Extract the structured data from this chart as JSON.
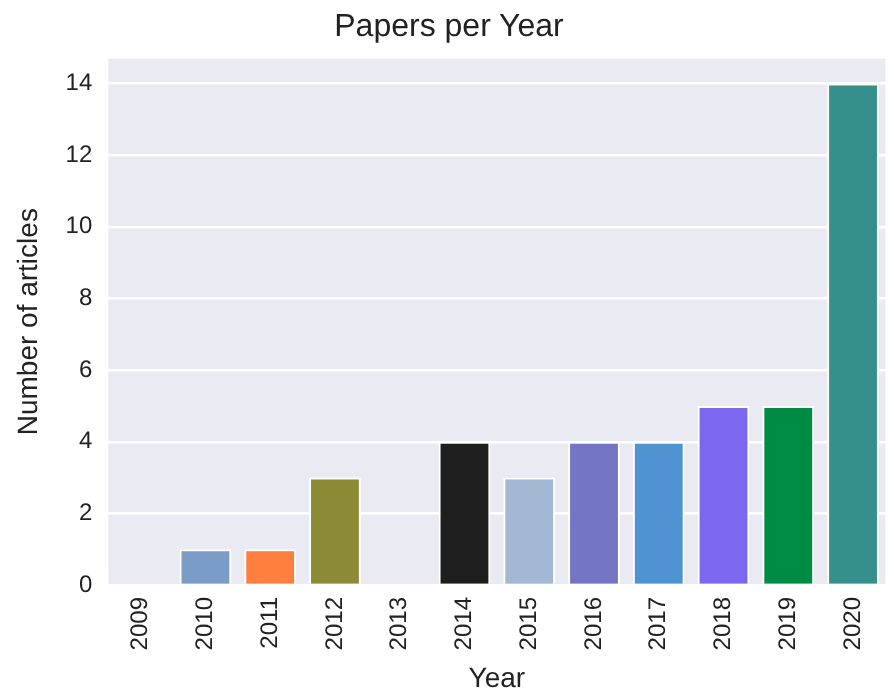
{
  "chart_data": {
    "type": "bar",
    "title": "Papers per Year",
    "xlabel": "Year",
    "ylabel": "Number of articles",
    "categories": [
      "2009",
      "2010",
      "2011",
      "2012",
      "2013",
      "2014",
      "2015",
      "2016",
      "2017",
      "2018",
      "2019",
      "2020"
    ],
    "values": [
      null,
      1,
      1,
      3,
      0.05,
      4,
      3,
      4,
      4,
      5,
      5,
      14
    ],
    "colors": [
      "#7a9cc6",
      "#7a9cc6",
      "#ff7f3f",
      "#8b8b35",
      "#c8e0e8",
      "#1e1e1e",
      "#a3b8d3",
      "#7474c4",
      "#4f94d0",
      "#7b68ee",
      "#008b45",
      "#358f8b"
    ],
    "ylim": [
      0,
      14.7
    ],
    "yticks": [
      0,
      2,
      4,
      6,
      8,
      10,
      12,
      14
    ],
    "grid": "y",
    "legend": false
  }
}
